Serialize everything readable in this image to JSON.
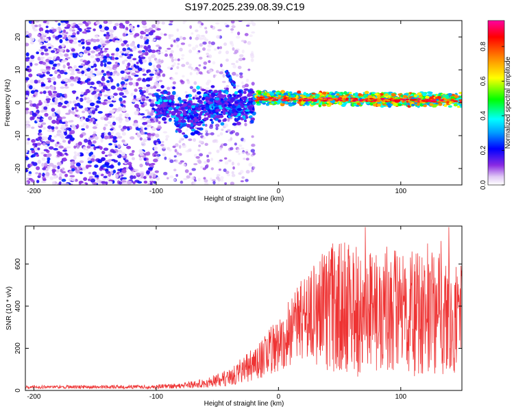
{
  "figure_title": "S197.2025.239.08.39.C19",
  "chart_data": [
    {
      "type": "heatmap",
      "name": "spectrogram",
      "xlabel": "Height of straight line (km)",
      "ylabel": "Frequency (Hz)",
      "xlim": [
        -207,
        150
      ],
      "ylim": [
        -25,
        25
      ],
      "xticks": [
        -200,
        -100,
        0,
        100
      ],
      "yticks": [
        -20,
        -10,
        0,
        10,
        20
      ],
      "colorbar": {
        "label": "Normalized spectral amplitude",
        "range": [
          0,
          0.95
        ],
        "ticks": [
          0.0,
          0.2,
          0.4,
          0.6,
          0.8
        ],
        "colormap": "rainbow (white-violet-blue-cyan-green-yellow-red-magenta)"
      },
      "features": [
        {
          "name": "noise region",
          "x_range": [
            -207,
            -100
          ],
          "freq_range": [
            -25,
            25
          ],
          "amplitude": "0.05-0.2"
        },
        {
          "name": "signal onset",
          "x_range": [
            -100,
            -20
          ],
          "center_freq": -1,
          "amplitude": "0.1-0.3"
        },
        {
          "name": "side signal",
          "x_range": [
            -43,
            -36
          ],
          "freq_range": [
            5,
            10
          ],
          "amplitude": "0.2"
        },
        {
          "name": "carrier",
          "x_range": [
            -20,
            150
          ],
          "center_freq": 1,
          "amplitude": "0.3-0.9"
        }
      ]
    },
    {
      "type": "line",
      "name": "snr",
      "xlabel": "Height of straight line (km)",
      "ylabel": "SNR (10 * v/v)",
      "xlim": [
        -207,
        150
      ],
      "ylim": [
        0,
        780
      ],
      "xticks": [
        -200,
        -100,
        0,
        100
      ],
      "yticks": [
        0,
        200,
        400,
        600
      ],
      "color": "#ee3333",
      "envelope": {
        "x": [
          -207,
          -150,
          -100,
          -80,
          -60,
          -40,
          -20,
          0,
          20,
          40,
          60,
          80,
          100,
          120,
          140,
          150
        ],
        "baseline": [
          15,
          15,
          15,
          20,
          30,
          55,
          110,
          190,
          300,
          330,
          330,
          320,
          310,
          300,
          300,
          280
        ],
        "amplitude": [
          8,
          8,
          10,
          14,
          22,
          40,
          80,
          130,
          200,
          300,
          330,
          320,
          310,
          300,
          300,
          260
        ]
      }
    }
  ]
}
